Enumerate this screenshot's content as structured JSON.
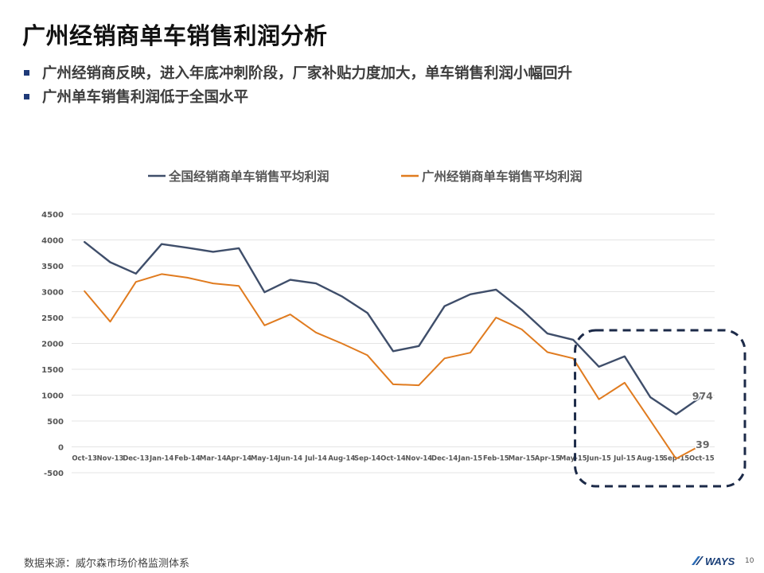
{
  "slide": {
    "title": "广州经销商单车销售利润分析",
    "bullets": [
      "广州经销商反映，进入年底冲刺阶段，厂家补贴力度加大，单车销售利润小幅回升",
      "广州单车销售利润低于全国水平"
    ],
    "source": "数据来源：威尔森市场价格监测体系",
    "logo_text": "WAYS",
    "page_number": "10"
  },
  "colors": {
    "national": "#3f4e6a",
    "guangzhou": "#e07b1f",
    "highlight_box": "#1c2a48",
    "grid": "#e4e4e4",
    "bullet": "#1f3a78"
  },
  "chart_data": {
    "type": "line",
    "categories": [
      "Oct-13",
      "Nov-13",
      "Dec-13",
      "Jan-14",
      "Feb-14",
      "Mar-14",
      "Apr-14",
      "May-14",
      "Jun-14",
      "Jul-14",
      "Aug-14",
      "Sep-14",
      "Oct-14",
      "Nov-14",
      "Dec-14",
      "Jan-15",
      "Feb-15",
      "Mar-15",
      "Apr-15",
      "May-15",
      "Jun-15",
      "Jul-15",
      "Aug-15",
      "Sep-15",
      "Oct-15"
    ],
    "series": [
      {
        "name": "全国经销商单车销售平均利润",
        "color": "#3f4e6a",
        "values": [
          3960,
          3570,
          3350,
          3920,
          3850,
          3770,
          3840,
          2990,
          3230,
          3160,
          2910,
          2590,
          1850,
          1950,
          2720,
          2950,
          3040,
          2650,
          2190,
          2070,
          1550,
          1750,
          960,
          630,
          974
        ]
      },
      {
        "name": "广州经销商单车销售平均利润",
        "color": "#e07b1f",
        "values": [
          3010,
          2420,
          3190,
          3340,
          3270,
          3160,
          3110,
          2350,
          2560,
          2210,
          2000,
          1770,
          1210,
          1190,
          1710,
          1820,
          2500,
          2270,
          1830,
          1710,
          920,
          1240,
          510,
          -230,
          39
        ]
      }
    ],
    "ylim": [
      -500,
      4500
    ],
    "yticks": [
      -500,
      0,
      500,
      1000,
      1500,
      2000,
      2500,
      3000,
      3500,
      4000,
      4500
    ],
    "grid": true,
    "legend": "top",
    "annotations": [
      {
        "series": 0,
        "index": 24,
        "text": "974"
      },
      {
        "series": 1,
        "index": 24,
        "text": "39"
      }
    ],
    "highlight_range": [
      "Jun-15",
      "Oct-15"
    ]
  }
}
